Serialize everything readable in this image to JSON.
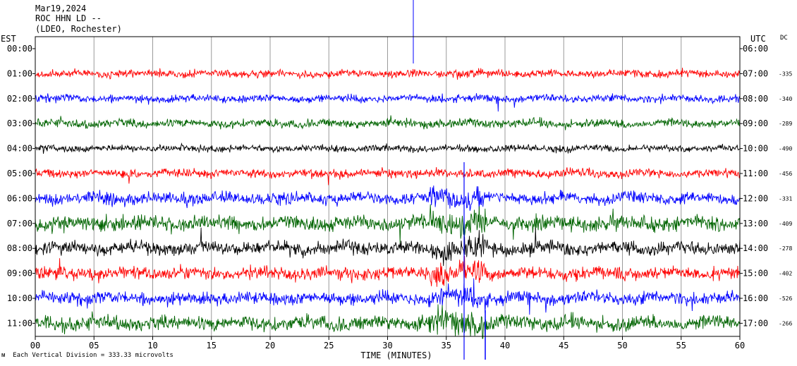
{
  "header": {
    "date": "Mar19,2024",
    "station": "ROC HHN LD --",
    "network": "(LDEO, Rochester)"
  },
  "left_tz_label": "EST",
  "right_tz_label": "UTC",
  "dc_label": "DC",
  "xlabel": "TIME (MINUTES)",
  "footer_text": "Each Vertical Division = 333.33 microvolts",
  "chart_data": {
    "type": "line",
    "title": "",
    "xlabel": "TIME (MINUTES)",
    "xlim": [
      0,
      60
    ],
    "x_ticks": [
      "00",
      "05",
      "10",
      "15",
      "20",
      "25",
      "30",
      "35",
      "40",
      "45",
      "50",
      "55",
      "60"
    ],
    "grid": true,
    "trace_colors": [
      "#ff0000",
      "#0000ff",
      "#006400",
      "#000000"
    ],
    "rows": [
      {
        "est": "00:00",
        "utc": "06:00",
        "dc": "",
        "amp": 0
      },
      {
        "est": "01:00",
        "utc": "07:00",
        "dc": "-335",
        "amp": 9
      },
      {
        "est": "02:00",
        "utc": "08:00",
        "dc": "-340",
        "amp": 9
      },
      {
        "est": "03:00",
        "utc": "09:00",
        "dc": "-289",
        "amp": 10
      },
      {
        "est": "04:00",
        "utc": "10:00",
        "dc": "-490",
        "amp": 8
      },
      {
        "est": "05:00",
        "utc": "11:00",
        "dc": "-456",
        "amp": 10
      },
      {
        "est": "06:00",
        "utc": "12:00",
        "dc": "-331",
        "amp": 14
      },
      {
        "est": "07:00",
        "utc": "13:00",
        "dc": "-409",
        "amp": 17
      },
      {
        "est": "08:00",
        "utc": "14:00",
        "dc": "-278",
        "amp": 16
      },
      {
        "est": "09:00",
        "utc": "15:00",
        "dc": "-402",
        "amp": 15
      },
      {
        "est": "10:00",
        "utc": "16:00",
        "dc": "-526",
        "amp": 15
      },
      {
        "est": "11:00",
        "utc": "17:00",
        "dc": "-266",
        "amp": 17
      }
    ],
    "event_minute": 36,
    "vertical_division_uv": 333.33
  }
}
